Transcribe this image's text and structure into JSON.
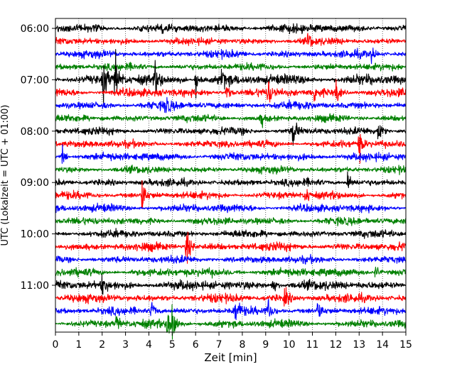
{
  "chart_data": {
    "type": "line",
    "title": "",
    "xlabel": "Zeit  [min]",
    "ylabel": "UTC (Lokalzeit = UTC + 01:00)",
    "xlim": [
      0,
      15
    ],
    "x_ticks": [
      "0",
      "1",
      "2",
      "3",
      "4",
      "5",
      "6",
      "7",
      "8",
      "9",
      "10",
      "11",
      "12",
      "13",
      "14",
      "15"
    ],
    "y_ticks": [
      "06:00",
      "07:00",
      "08:00",
      "09:00",
      "10:00",
      "11:00"
    ],
    "grid": true,
    "trace_interval_min": 15,
    "colors": [
      "#000000",
      "#ff0000",
      "#0000ff",
      "#008000"
    ],
    "traces": [
      {
        "start": "06:00",
        "color": "#000000",
        "noise": 0.18,
        "events": []
      },
      {
        "start": "06:15",
        "color": "#ff0000",
        "noise": 0.15,
        "events": [
          [
            10.8,
            0.4
          ]
        ]
      },
      {
        "start": "06:30",
        "color": "#0000ff",
        "noise": 0.16,
        "events": [
          [
            13.5,
            0.3
          ]
        ]
      },
      {
        "start": "06:45",
        "color": "#008000",
        "noise": 0.15,
        "events": []
      },
      {
        "start": "07:00",
        "color": "#000000",
        "noise": 0.22,
        "events": [
          [
            2.05,
            1.2
          ],
          [
            2.55,
            1.3
          ],
          [
            4.25,
            0.6
          ],
          [
            6.0,
            0.7
          ],
          [
            7.1,
            0.6
          ]
        ]
      },
      {
        "start": "07:15",
        "color": "#ff0000",
        "noise": 0.18,
        "events": [
          [
            7.3,
            0.5
          ],
          [
            9.1,
            0.6
          ],
          [
            11.1,
            0.5
          ],
          [
            12.0,
            0.6
          ]
        ]
      },
      {
        "start": "07:30",
        "color": "#0000ff",
        "noise": 0.17,
        "events": [
          [
            4.7,
            0.4
          ]
        ]
      },
      {
        "start": "07:45",
        "color": "#008000",
        "noise": 0.15,
        "events": [
          [
            8.8,
            0.4
          ]
        ]
      },
      {
        "start": "08:00",
        "color": "#000000",
        "noise": 0.16,
        "events": [
          [
            10.15,
            0.9
          ],
          [
            13.8,
            0.6
          ]
        ]
      },
      {
        "start": "08:15",
        "color": "#ff0000",
        "noise": 0.16,
        "events": [
          [
            13.0,
            0.7
          ]
        ]
      },
      {
        "start": "08:30",
        "color": "#0000ff",
        "noise": 0.17,
        "events": [
          [
            0.3,
            0.4
          ]
        ]
      },
      {
        "start": "08:45",
        "color": "#008000",
        "noise": 0.15,
        "events": []
      },
      {
        "start": "09:00",
        "color": "#000000",
        "noise": 0.16,
        "events": [
          [
            12.5,
            0.5
          ]
        ]
      },
      {
        "start": "09:15",
        "color": "#ff0000",
        "noise": 0.16,
        "events": [
          [
            3.7,
            0.8
          ],
          [
            10.7,
            0.5
          ]
        ]
      },
      {
        "start": "09:30",
        "color": "#0000ff",
        "noise": 0.17,
        "events": []
      },
      {
        "start": "09:45",
        "color": "#008000",
        "noise": 0.16,
        "events": []
      },
      {
        "start": "10:00",
        "color": "#000000",
        "noise": 0.16,
        "events": []
      },
      {
        "start": "10:15",
        "color": "#ff0000",
        "noise": 0.18,
        "events": [
          [
            5.6,
            1.0
          ]
        ]
      },
      {
        "start": "10:30",
        "color": "#0000ff",
        "noise": 0.16,
        "events": []
      },
      {
        "start": "10:45",
        "color": "#008000",
        "noise": 0.18,
        "events": [
          [
            13.7,
            0.4
          ]
        ]
      },
      {
        "start": "11:00",
        "color": "#000000",
        "noise": 0.2,
        "events": [
          [
            2.0,
            0.4
          ],
          [
            9.3,
            0.4
          ]
        ]
      },
      {
        "start": "11:15",
        "color": "#ff0000",
        "noise": 0.18,
        "events": [
          [
            9.8,
            0.5
          ]
        ]
      },
      {
        "start": "11:30",
        "color": "#0000ff",
        "noise": 0.16,
        "events": [
          [
            4.1,
            0.6
          ],
          [
            7.7,
            0.8
          ],
          [
            9.1,
            0.7
          ],
          [
            11.2,
            0.5
          ]
        ]
      },
      {
        "start": "11:45",
        "color": "#008000",
        "noise": 0.17,
        "events": [
          [
            4.8,
            1.3
          ],
          [
            5.0,
            1.1
          ],
          [
            2.6,
            0.4
          ]
        ]
      }
    ]
  }
}
